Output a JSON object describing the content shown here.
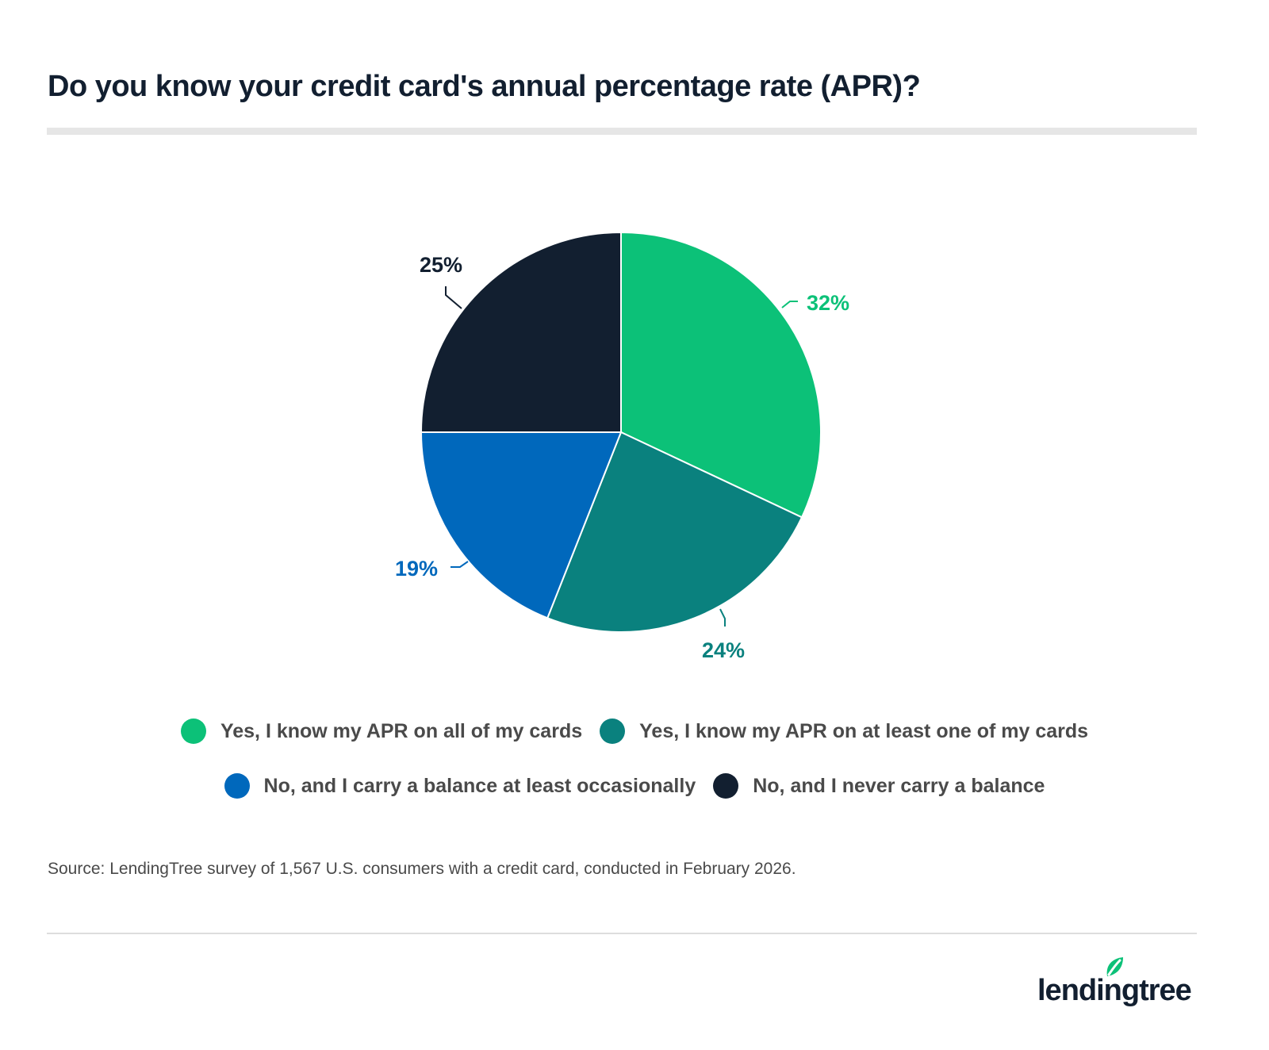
{
  "title": "Do you know your credit card's annual percentage rate (APR)?",
  "chart_data": {
    "type": "pie",
    "title": "Do you know your credit card's annual percentage rate (APR)?",
    "categories": [
      "Yes, I know my APR on all of my cards",
      "Yes, I know my APR on at least one of my cards",
      "No, and I carry a balance at least occasionally",
      "No, and I never carry a balance"
    ],
    "values": [
      32,
      24,
      19,
      25
    ],
    "labels": [
      "32%",
      "24%",
      "19%",
      "25%"
    ],
    "colors": [
      "#0cc178",
      "#0a817e",
      "#0068bc",
      "#121f30"
    ],
    "start_angle": "12 o'clock, clockwise",
    "legend_position": "bottom"
  },
  "legend": {
    "items": [
      {
        "label": "Yes, I know my APR on all of my cards",
        "color": "#0cc178"
      },
      {
        "label": "Yes, I know my APR on at least one of my cards",
        "color": "#0a817e"
      },
      {
        "label": "No, and I carry a balance at least occasionally",
        "color": "#0068bc"
      },
      {
        "label": "No, and I never carry a balance",
        "color": "#121f30"
      }
    ]
  },
  "source": "Source: LendingTree survey of 1,567 U.S. consumers with a credit card, conducted in February 2026.",
  "logo": {
    "text": "lendingtree",
    "leaf_color": "#0cc178"
  }
}
